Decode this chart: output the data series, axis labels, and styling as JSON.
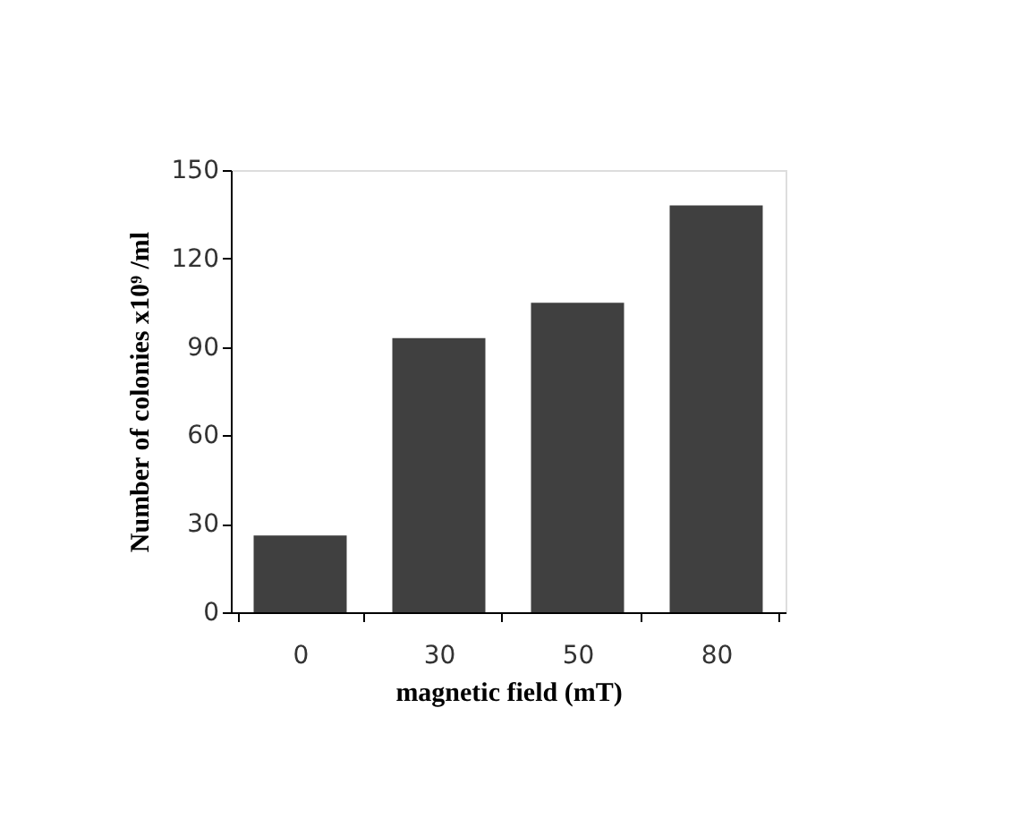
{
  "chart_data": {
    "type": "bar",
    "xlabel": "magnetic field (mT)",
    "ylabel": "Number of colonies x10⁹ /ml",
    "categories": [
      "0",
      "30",
      "50",
      "80"
    ],
    "values": [
      26,
      93,
      105,
      138
    ],
    "color": "#404040",
    "ylim": [
      0,
      150
    ],
    "yticks": [
      0,
      30,
      60,
      90,
      120,
      150
    ],
    "grid": false
  }
}
